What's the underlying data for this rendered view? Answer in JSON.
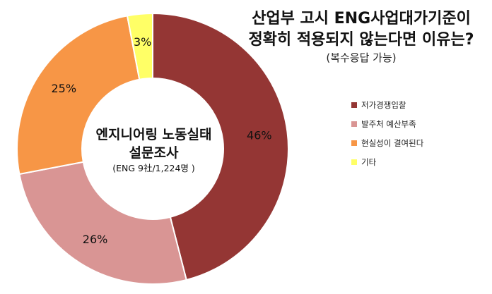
{
  "chart_data": {
    "type": "pie",
    "variant": "donut",
    "title": [
      "산업부 고시 ENG사업대가기준이",
      "정확히 적용되지 않는다면 이유는?"
    ],
    "subtitle": "(복수응답 가능)",
    "center_label": [
      "엔지니어링 노동실태",
      "설문조사"
    ],
    "center_sublabel": "(ENG 9社/1,224명 )",
    "legend_position": "right",
    "slices": [
      {
        "label": "저가경쟁입찰",
        "value": 46,
        "value_label": "46%",
        "color": "#943634"
      },
      {
        "label": "발주처 예산부족",
        "value": 26,
        "value_label": "26%",
        "color": "#D99594"
      },
      {
        "label": "현실성이 결여된다",
        "value": 25,
        "value_label": "25%",
        "color": "#F79646"
      },
      {
        "label": "기타",
        "value": 3,
        "value_label": "3%",
        "color": "#FFFF66"
      }
    ]
  }
}
